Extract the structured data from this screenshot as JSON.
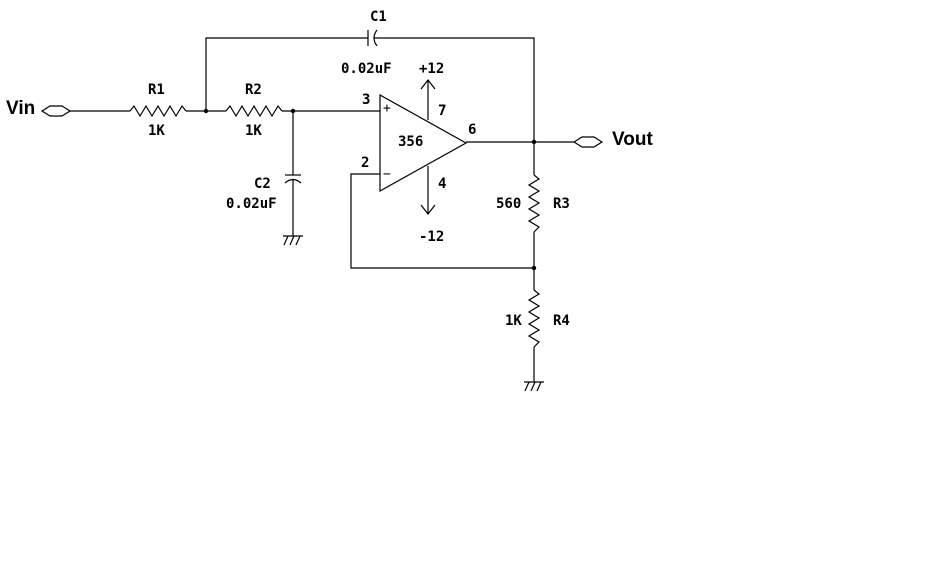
{
  "nets": {
    "input": "Vin",
    "output": "Vout"
  },
  "resistors": {
    "r1": {
      "name": "R1",
      "value": "1K"
    },
    "r2": {
      "name": "R2",
      "value": "1K"
    },
    "r3": {
      "name": "R3",
      "value": "560"
    },
    "r4": {
      "name": "R4",
      "value": "1K"
    }
  },
  "capacitors": {
    "c1": {
      "name": "C1",
      "value": "0.02uF"
    },
    "c2": {
      "name": "C2",
      "value": "0.02uF"
    }
  },
  "opamp": {
    "part": "356",
    "pin_noninverting": "3",
    "pin_inverting": "2",
    "pin_output": "6",
    "pin_vplus": "7",
    "pin_vminus": "4",
    "sign_plus": "+",
    "sign_minus": "−",
    "supply_positive": "+12",
    "supply_negative": "-12"
  }
}
